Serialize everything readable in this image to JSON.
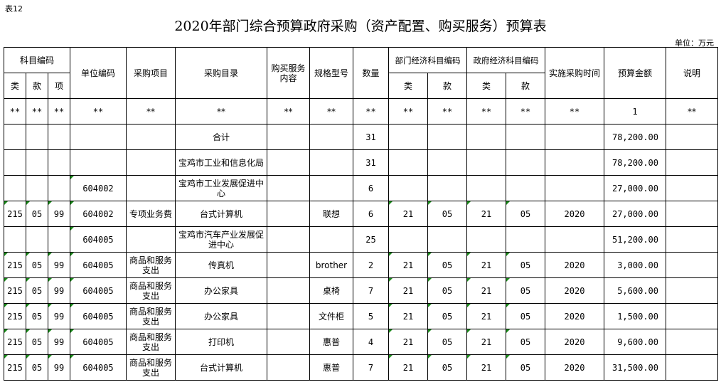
{
  "sheet_tag": "表12",
  "title": "2020年部门综合预算政府采购（资产配置、购买服务）预算表",
  "unit": "单位：万元",
  "headers": {
    "subject_code": "科目编码",
    "lei": "类",
    "kuan": "款",
    "xiang": "项",
    "unit_code": "单位编码",
    "project": "采购项目",
    "catalog": "采购目录",
    "service_content": "购买服务内容",
    "spec": "规格型号",
    "quantity": "数量",
    "dept_econ": "部门经济科目编码",
    "gov_econ": "政府经济科目编码",
    "time": "实施采购时间",
    "amount": "预算金额",
    "note": "说明"
  },
  "marker_row": [
    "**",
    "**",
    "**",
    "**",
    "**",
    "**",
    "**",
    "**",
    "**",
    "**",
    "**",
    "**",
    "**",
    "**",
    "1",
    "**"
  ],
  "rows": [
    [
      "",
      "",
      "",
      "",
      "",
      "合计",
      "",
      "",
      "31",
      "",
      "",
      "",
      "",
      "",
      "78,200.00",
      ""
    ],
    [
      "",
      "",
      "",
      "",
      "",
      "宝鸡市工业和信息化局",
      "",
      "",
      "31",
      "",
      "",
      "",
      "",
      "",
      "78,200.00",
      ""
    ],
    [
      "",
      "",
      "",
      "604002",
      "",
      "宝鸡市工业发展促进中心",
      "",
      "",
      "6",
      "",
      "",
      "",
      "",
      "",
      "27,000.00",
      ""
    ],
    [
      "215",
      "05",
      "99",
      "604002",
      "专项业务费",
      "台式计算机",
      "",
      "联想",
      "6",
      "21",
      "05",
      "21",
      "05",
      "2020",
      "27,000.00",
      ""
    ],
    [
      "",
      "",
      "",
      "604005",
      "",
      "宝鸡市汽车产业发展促进中心",
      "",
      "",
      "25",
      "",
      "",
      "",
      "",
      "",
      "51,200.00",
      ""
    ],
    [
      "215",
      "05",
      "99",
      "604005",
      "商品和服务支出",
      "传真机",
      "",
      "brother",
      "2",
      "21",
      "05",
      "21",
      "05",
      "2020",
      "3,000.00",
      ""
    ],
    [
      "215",
      "05",
      "99",
      "604005",
      "商品和服务支出",
      "办公家具",
      "",
      "桌椅",
      "7",
      "21",
      "05",
      "21",
      "05",
      "2020",
      "5,600.00",
      ""
    ],
    [
      "215",
      "05",
      "99",
      "604005",
      "商品和服务支出",
      "办公家具",
      "",
      "文件柜",
      "5",
      "21",
      "05",
      "21",
      "05",
      "2020",
      "1,500.00",
      ""
    ],
    [
      "215",
      "05",
      "99",
      "604005",
      "商品和服务支出",
      "打印机",
      "",
      "惠普",
      "4",
      "21",
      "05",
      "21",
      "05",
      "2020",
      "9,600.00",
      ""
    ],
    [
      "215",
      "05",
      "99",
      "604005",
      "商品和服务支出",
      "台式计算机",
      "",
      "惠普",
      "7",
      "21",
      "05",
      "21",
      "05",
      "2020",
      "31,500.00",
      ""
    ]
  ]
}
